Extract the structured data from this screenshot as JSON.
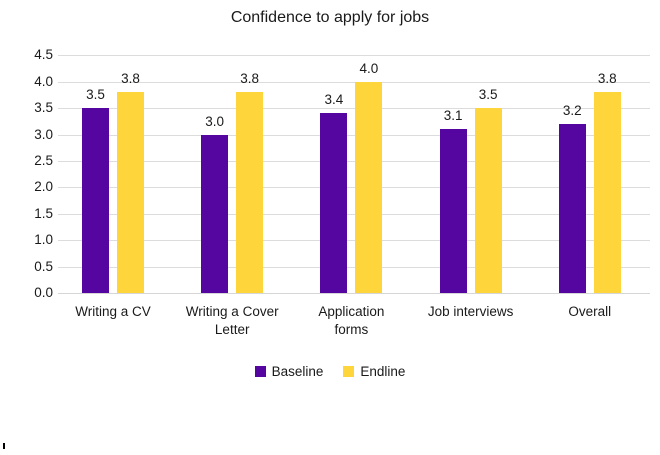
{
  "chart_data": {
    "type": "bar",
    "title": "Confidence to apply for jobs",
    "categories": [
      "Writing a CV",
      "Writing a Cover Letter",
      "Application forms",
      "Job interviews",
      "Overall"
    ],
    "category_label_lines": [
      [
        "Writing a CV"
      ],
      [
        "Writing a Cover",
        "Letter"
      ],
      [
        "Application",
        "forms"
      ],
      [
        "Job interviews"
      ],
      [
        "Overall"
      ]
    ],
    "series": [
      {
        "name": "Baseline",
        "color": "#5505A0",
        "values": [
          3.5,
          3.0,
          3.4,
          3.1,
          3.2
        ],
        "value_labels": [
          "3.5",
          "3.0",
          "3.4",
          "3.1",
          "3.2"
        ]
      },
      {
        "name": "Endline",
        "color": "#FED53B",
        "values": [
          3.8,
          3.8,
          4.0,
          3.5,
          3.8
        ],
        "value_labels": [
          "3.8",
          "3.8",
          "4.0",
          "3.5",
          "3.8"
        ]
      }
    ],
    "xlabel": "",
    "ylabel": "",
    "ylim": [
      0,
      4.5
    ],
    "ytick_step": 0.5,
    "ytick_labels": [
      "0.0",
      "0.5",
      "1.0",
      "1.5",
      "2.0",
      "2.5",
      "3.0",
      "3.5",
      "4.0",
      "4.5"
    ],
    "grid": true,
    "legend_position": "bottom",
    "value_labels_shown": true
  },
  "colors": {
    "baseline": "#5505A0",
    "endline": "#FED53B",
    "gridline": "#DCDCDC",
    "axis_line": "#D6D6D6",
    "text": "#1A1A1A",
    "background": "#FFFFFF"
  }
}
